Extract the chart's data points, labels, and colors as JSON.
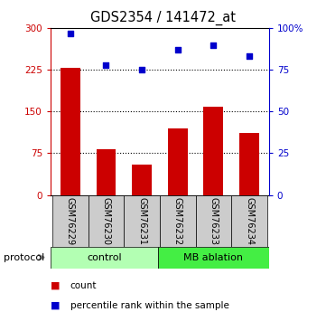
{
  "title": "GDS2354 / 141472_at",
  "samples": [
    "GSM76229",
    "GSM76230",
    "GSM76231",
    "GSM76232",
    "GSM76233",
    "GSM76234"
  ],
  "counts": [
    228,
    82,
    55,
    120,
    158,
    112
  ],
  "percentiles": [
    97,
    78,
    75,
    87,
    90,
    83
  ],
  "bar_color": "#cc0000",
  "dot_color": "#0000cc",
  "left_ylim": [
    0,
    300
  ],
  "right_ylim": [
    0,
    100
  ],
  "left_yticks": [
    0,
    75,
    150,
    225,
    300
  ],
  "right_yticks": [
    0,
    25,
    50,
    75,
    100
  ],
  "left_yticklabels": [
    "0",
    "75",
    "150",
    "225",
    "300"
  ],
  "right_yticklabels": [
    "0",
    "25",
    "50",
    "75",
    "100%"
  ],
  "groups": [
    {
      "label": "control",
      "color": "#b3ffb3"
    },
    {
      "label": "MB ablation",
      "color": "#44ee44"
    }
  ],
  "protocol_label": "protocol",
  "legend_items": [
    {
      "label": "count",
      "color": "#cc0000"
    },
    {
      "label": "percentile rank within the sample",
      "color": "#0000cc"
    }
  ],
  "bg_color": "#ffffff",
  "sample_bg": "#cccccc",
  "bar_width": 0.55
}
